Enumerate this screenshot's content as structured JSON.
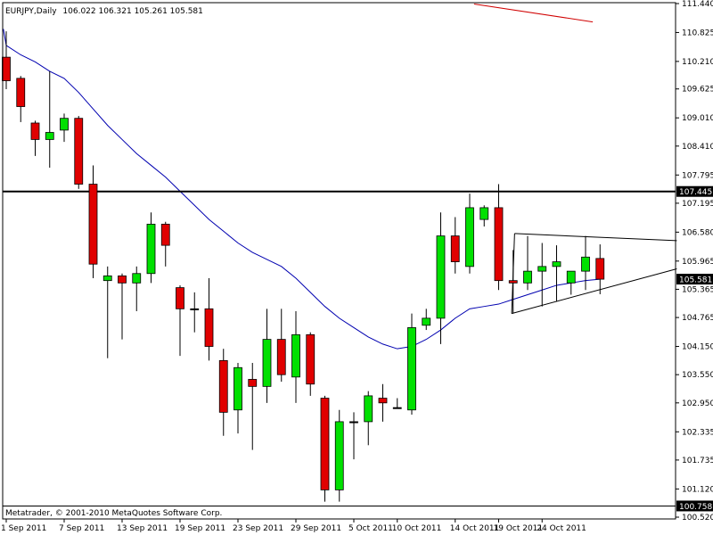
{
  "header": {
    "symbol": "EURJPY,Daily",
    "ohlc": "106.022 106.321 105.261 105.581"
  },
  "footer": {
    "copyright": "Metatrader, © 2001-2010 MetaQuotes Software Corp."
  },
  "colors": {
    "background": "#ffffff",
    "bull": "#00e000",
    "bear": "#e00000",
    "wick": "#000000",
    "moving_average": "#0000b0",
    "upper_ma": "#d00000",
    "lines": "#000000",
    "price_label_bg": "#000000",
    "price_label_text": "#ffffff"
  },
  "chart_data": {
    "type": "candlestick",
    "instrument": "EURJPY",
    "timeframe": "Daily",
    "y_ticks": [
      "111.440",
      "110.825",
      "110.210",
      "109.625",
      "109.010",
      "108.410",
      "107.795",
      "107.195",
      "106.580",
      "105.965",
      "105.365",
      "104.765",
      "104.150",
      "103.550",
      "102.950",
      "102.335",
      "101.735",
      "101.120",
      "100.520"
    ],
    "ylim": [
      100.52,
      111.44
    ],
    "x_tick_labels": [
      {
        "label": "1 Sep 2011",
        "index": 0
      },
      {
        "label": "7 Sep 2011",
        "index": 4
      },
      {
        "label": "13 Sep 2011",
        "index": 8
      },
      {
        "label": "19 Sep 2011",
        "index": 12
      },
      {
        "label": "23 Sep 2011",
        "index": 16
      },
      {
        "label": "29 Sep 2011",
        "index": 20
      },
      {
        "label": "5 Oct 2011",
        "index": 24
      },
      {
        "label": "10 Oct 2011",
        "index": 27
      },
      {
        "label": "14 Oct 2011",
        "index": 31
      },
      {
        "label": "19 Oct 2011",
        "index": 34
      },
      {
        "label": "24 Oct 2011",
        "index": 37
      }
    ],
    "candles": [
      {
        "o": 110.3,
        "h": 110.85,
        "l": 109.62,
        "c": 109.8
      },
      {
        "o": 109.85,
        "h": 109.9,
        "l": 108.92,
        "c": 109.25
      },
      {
        "o": 108.9,
        "h": 108.95,
        "l": 108.2,
        "c": 108.55
      },
      {
        "o": 108.55,
        "h": 110.0,
        "l": 107.95,
        "c": 108.7
      },
      {
        "o": 108.75,
        "h": 109.1,
        "l": 108.5,
        "c": 109.0
      },
      {
        "o": 109.0,
        "h": 109.05,
        "l": 107.5,
        "c": 107.6
      },
      {
        "o": 107.6,
        "h": 108.0,
        "l": 105.6,
        "c": 105.9
      },
      {
        "o": 105.55,
        "h": 105.85,
        "l": 103.9,
        "c": 105.65
      },
      {
        "o": 105.65,
        "h": 105.7,
        "l": 104.3,
        "c": 105.5
      },
      {
        "o": 105.5,
        "h": 105.85,
        "l": 104.9,
        "c": 105.7
      },
      {
        "o": 105.7,
        "h": 107.0,
        "l": 105.5,
        "c": 106.75
      },
      {
        "o": 106.75,
        "h": 106.8,
        "l": 105.85,
        "c": 106.3
      },
      {
        "o": 105.4,
        "h": 105.45,
        "l": 103.95,
        "c": 104.95
      },
      {
        "o": 104.95,
        "h": 105.3,
        "l": 104.45,
        "c": 104.95
      },
      {
        "o": 104.95,
        "h": 105.6,
        "l": 103.85,
        "c": 104.15
      },
      {
        "o": 103.85,
        "h": 104.1,
        "l": 102.25,
        "c": 102.75
      },
      {
        "o": 102.8,
        "h": 103.8,
        "l": 102.3,
        "c": 103.7
      },
      {
        "o": 103.45,
        "h": 103.8,
        "l": 101.95,
        "c": 103.3
      },
      {
        "o": 103.3,
        "h": 104.95,
        "l": 102.95,
        "c": 104.3
      },
      {
        "o": 104.3,
        "h": 104.95,
        "l": 103.4,
        "c": 103.55
      },
      {
        "o": 103.5,
        "h": 104.9,
        "l": 102.95,
        "c": 104.4
      },
      {
        "o": 104.4,
        "h": 104.45,
        "l": 103.1,
        "c": 103.35
      },
      {
        "o": 103.05,
        "h": 103.1,
        "l": 100.85,
        "c": 101.1
      },
      {
        "o": 101.1,
        "h": 102.8,
        "l": 100.85,
        "c": 102.55
      },
      {
        "o": 102.55,
        "h": 102.75,
        "l": 101.75,
        "c": 102.55
      },
      {
        "o": 102.55,
        "h": 103.2,
        "l": 102.05,
        "c": 103.1
      },
      {
        "o": 103.05,
        "h": 103.35,
        "l": 102.55,
        "c": 102.95
      },
      {
        "o": 102.85,
        "h": 103.05,
        "l": 102.85,
        "c": 102.85
      },
      {
        "o": 102.8,
        "h": 104.85,
        "l": 102.7,
        "c": 104.55
      },
      {
        "o": 104.6,
        "h": 104.95,
        "l": 104.5,
        "c": 104.75
      },
      {
        "o": 104.75,
        "h": 107.0,
        "l": 104.2,
        "c": 106.5
      },
      {
        "o": 106.5,
        "h": 106.9,
        "l": 105.7,
        "c": 105.95
      },
      {
        "o": 105.85,
        "h": 107.4,
        "l": 105.7,
        "c": 107.1
      },
      {
        "o": 106.85,
        "h": 107.15,
        "l": 106.7,
        "c": 107.1
      },
      {
        "o": 107.1,
        "h": 107.6,
        "l": 105.35,
        "c": 105.55
      },
      {
        "o": 105.55,
        "h": 106.2,
        "l": 104.85,
        "c": 105.5
      },
      {
        "o": 105.5,
        "h": 106.5,
        "l": 105.35,
        "c": 105.75
      },
      {
        "o": 105.75,
        "h": 106.35,
        "l": 105.0,
        "c": 105.85
      },
      {
        "o": 105.85,
        "h": 106.3,
        "l": 105.1,
        "c": 105.95
      },
      {
        "o": 105.5,
        "h": 105.75,
        "l": 105.25,
        "c": 105.75
      },
      {
        "o": 105.75,
        "h": 106.5,
        "l": 105.35,
        "c": 106.05
      },
      {
        "o": 106.02,
        "h": 106.32,
        "l": 105.26,
        "c": 105.58
      }
    ],
    "moving_average": {
      "points": [
        [
          -0.2,
          110.9
        ],
        [
          0,
          110.55
        ],
        [
          1,
          110.35
        ],
        [
          2,
          110.2
        ],
        [
          3,
          110.0
        ],
        [
          4,
          109.85
        ],
        [
          5,
          109.55
        ],
        [
          6,
          109.2
        ],
        [
          7,
          108.85
        ],
        [
          8,
          108.55
        ],
        [
          9,
          108.25
        ],
        [
          10,
          108.0
        ],
        [
          11,
          107.75
        ],
        [
          12,
          107.45
        ],
        [
          13,
          107.15
        ],
        [
          14,
          106.85
        ],
        [
          15,
          106.6
        ],
        [
          16,
          106.35
        ],
        [
          17,
          106.15
        ],
        [
          18,
          106.0
        ],
        [
          19,
          105.85
        ],
        [
          20,
          105.6
        ],
        [
          21,
          105.3
        ],
        [
          22,
          105.0
        ],
        [
          23,
          104.75
        ],
        [
          24,
          104.55
        ],
        [
          25,
          104.35
        ],
        [
          26,
          104.2
        ],
        [
          27,
          104.1
        ],
        [
          28,
          104.15
        ],
        [
          29,
          104.3
        ],
        [
          30,
          104.5
        ],
        [
          31,
          104.75
        ],
        [
          32,
          104.95
        ],
        [
          33,
          105.0
        ],
        [
          34,
          105.05
        ],
        [
          35,
          105.15
        ],
        [
          36,
          105.25
        ],
        [
          37,
          105.35
        ],
        [
          38,
          105.45
        ],
        [
          39,
          105.5
        ],
        [
          40,
          105.55
        ],
        [
          41,
          105.58
        ]
      ]
    },
    "upper_ma_segment": [
      [
        32.3,
        111.43
      ],
      [
        40.5,
        111.05
      ]
    ],
    "horizontal_lines": [
      107.445,
      100.758
    ],
    "triangle": {
      "upper": [
        [
          35.1,
          106.55
        ],
        [
          46.3,
          106.4
        ]
      ],
      "lower": [
        [
          34.9,
          104.85
        ],
        [
          46.3,
          105.8
        ]
      ],
      "left_edge": [
        [
          35.1,
          106.55
        ],
        [
          34.9,
          104.85
        ]
      ]
    },
    "price_labels": [
      {
        "value": 107.445,
        "text": "107.445"
      },
      {
        "value": 105.581,
        "text": "105.581"
      },
      {
        "value": 100.758,
        "text": "100.758"
      }
    ]
  }
}
